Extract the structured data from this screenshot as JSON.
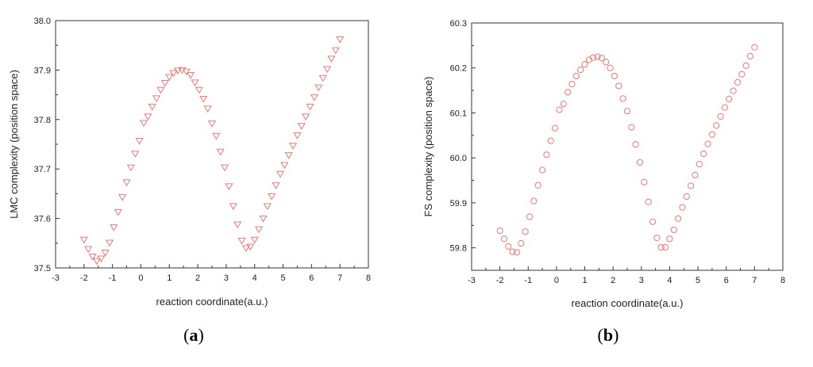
{
  "panels": [
    {
      "label_open": "(",
      "label_letter": "a",
      "label_close": ")"
    },
    {
      "label_open": "(",
      "label_letter": "b",
      "label_close": ")"
    }
  ],
  "chart_data": [
    {
      "type": "scatter",
      "marker": "triangle-down",
      "color": "#e87878",
      "xlabel": "reaction coordinate(a.u.)",
      "ylabel": "LMC complexity (position space)",
      "xlim": [
        -3,
        8
      ],
      "ylim": [
        37.5,
        38.0
      ],
      "xticks": [
        -3,
        -2,
        -1,
        0,
        1,
        2,
        3,
        4,
        5,
        6,
        7,
        8
      ],
      "yticks": [
        37.5,
        37.6,
        37.7,
        37.8,
        37.9,
        38.0
      ],
      "ytick_labels": [
        "37.5",
        "37.6",
        "37.7",
        "37.8",
        "37.9",
        "38.0"
      ],
      "grid": false,
      "series": [
        {
          "x": [
            -2.0,
            -1.85,
            -1.7,
            -1.55,
            -1.4,
            -1.25,
            -1.1,
            -0.95,
            -0.8,
            -0.65,
            -0.5,
            -0.35,
            -0.2,
            -0.05,
            0.1,
            0.25,
            0.4,
            0.55,
            0.7,
            0.85,
            1.0,
            1.15,
            1.3,
            1.45,
            1.6,
            1.75,
            1.9,
            2.05,
            2.2,
            2.35,
            2.5,
            2.65,
            2.8,
            2.95,
            3.1,
            3.25,
            3.4,
            3.55,
            3.7,
            3.85,
            4.0,
            4.15,
            4.3,
            4.45,
            4.6,
            4.75,
            4.9,
            5.05,
            5.2,
            5.35,
            5.5,
            5.65,
            5.8,
            5.95,
            6.1,
            6.25,
            6.4,
            6.55,
            6.7,
            6.85,
            7.0
          ],
          "y": [
            37.557,
            37.538,
            37.523,
            37.514,
            37.519,
            37.531,
            37.551,
            37.582,
            37.613,
            37.643,
            37.673,
            37.703,
            37.731,
            37.757,
            37.793,
            37.806,
            37.826,
            37.843,
            37.86,
            37.874,
            37.886,
            37.894,
            37.899,
            37.9,
            37.897,
            37.89,
            37.875,
            37.86,
            37.842,
            37.822,
            37.792,
            37.767,
            37.735,
            37.703,
            37.665,
            37.625,
            37.588,
            37.555,
            37.54,
            37.543,
            37.557,
            37.578,
            37.6,
            37.625,
            37.645,
            37.667,
            37.69,
            37.708,
            37.728,
            37.747,
            37.768,
            37.787,
            37.806,
            37.826,
            37.845,
            37.865,
            37.884,
            37.902,
            37.923,
            37.94,
            37.962
          ]
        }
      ]
    },
    {
      "type": "scatter",
      "marker": "circle",
      "color": "#e87878",
      "xlabel": "reaction coordinate(a.u.)",
      "ylabel": "FS complexity (position space)",
      "xlim": [
        -3,
        8
      ],
      "ylim": [
        59.75,
        60.3
      ],
      "xticks": [
        -3,
        -2,
        -1,
        0,
        1,
        2,
        3,
        4,
        5,
        6,
        7,
        8
      ],
      "yticks": [
        59.8,
        59.9,
        60.0,
        60.1,
        60.2,
        60.3
      ],
      "ytick_labels": [
        "59.8",
        "59.9",
        "60.0",
        "60.1",
        "60.2",
        "60.3"
      ],
      "grid": false,
      "series": [
        {
          "x": [
            -2.0,
            -1.85,
            -1.7,
            -1.55,
            -1.4,
            -1.25,
            -1.1,
            -0.95,
            -0.8,
            -0.65,
            -0.5,
            -0.35,
            -0.2,
            -0.05,
            0.1,
            0.25,
            0.4,
            0.55,
            0.7,
            0.85,
            1.0,
            1.15,
            1.3,
            1.45,
            1.6,
            1.75,
            1.9,
            2.05,
            2.2,
            2.35,
            2.5,
            2.65,
            2.8,
            2.95,
            3.1,
            3.25,
            3.4,
            3.55,
            3.7,
            3.85,
            4.0,
            4.15,
            4.3,
            4.45,
            4.6,
            4.75,
            4.9,
            5.05,
            5.2,
            5.35,
            5.5,
            5.65,
            5.8,
            5.95,
            6.1,
            6.25,
            6.4,
            6.55,
            6.7,
            6.85,
            7.0
          ],
          "y": [
            59.838,
            59.82,
            59.803,
            59.791,
            59.79,
            59.81,
            59.836,
            59.869,
            59.904,
            59.939,
            59.973,
            60.007,
            60.038,
            60.066,
            60.107,
            60.12,
            60.146,
            60.164,
            60.182,
            60.196,
            60.208,
            60.218,
            60.223,
            60.225,
            60.222,
            60.213,
            60.2,
            60.182,
            60.16,
            60.132,
            60.104,
            60.068,
            60.03,
            59.99,
            59.946,
            59.902,
            59.858,
            59.822,
            59.801,
            59.801,
            59.82,
            59.84,
            59.865,
            59.89,
            59.914,
            59.938,
            59.962,
            59.986,
            60.009,
            60.031,
            60.052,
            60.072,
            60.092,
            60.112,
            60.131,
            60.149,
            60.168,
            60.186,
            60.205,
            60.226,
            60.246
          ]
        }
      ]
    }
  ]
}
